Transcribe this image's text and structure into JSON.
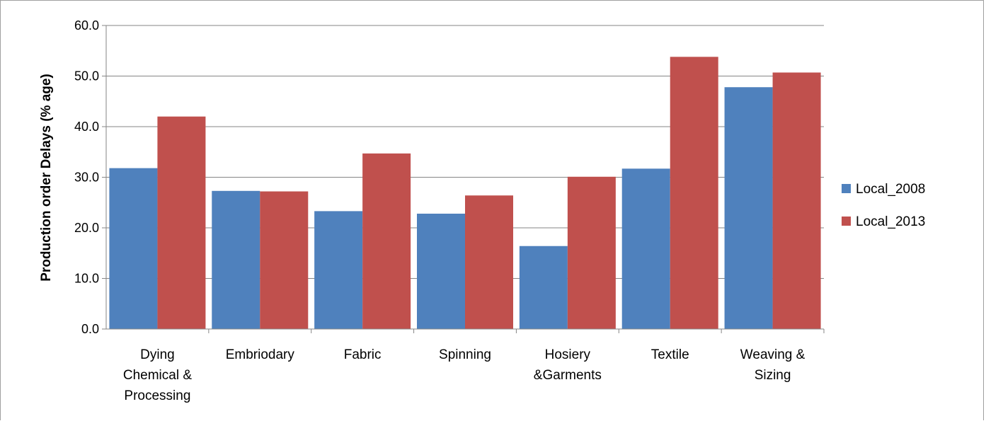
{
  "chart_data": {
    "type": "bar",
    "title": "",
    "xlabel": "",
    "ylabel": "Production order Delays (% age)",
    "ylim": [
      0,
      60
    ],
    "yticks": [
      0,
      10,
      20,
      30,
      40,
      50,
      60
    ],
    "ytick_labels": [
      "0.0",
      "10.0",
      "20.0",
      "30.0",
      "40.0",
      "50.0",
      "60.0"
    ],
    "grid": true,
    "legend_position": "right",
    "categories": [
      [
        "Dying",
        "Chemical &",
        "Processing"
      ],
      [
        "Embriodary"
      ],
      [
        "Fabric"
      ],
      [
        "Spinning"
      ],
      [
        "Hosiery",
        "&Garments"
      ],
      [
        "Textile"
      ],
      [
        "Weaving &",
        "Sizing"
      ]
    ],
    "series": [
      {
        "name": "Local_2008",
        "color": "#4F81BD",
        "values": [
          31.8,
          27.3,
          23.3,
          22.8,
          16.4,
          31.7,
          47.8
        ]
      },
      {
        "name": "Local_2013",
        "color": "#C0504D",
        "values": [
          42.0,
          27.2,
          34.7,
          26.4,
          30.1,
          53.8,
          50.7
        ]
      }
    ]
  }
}
